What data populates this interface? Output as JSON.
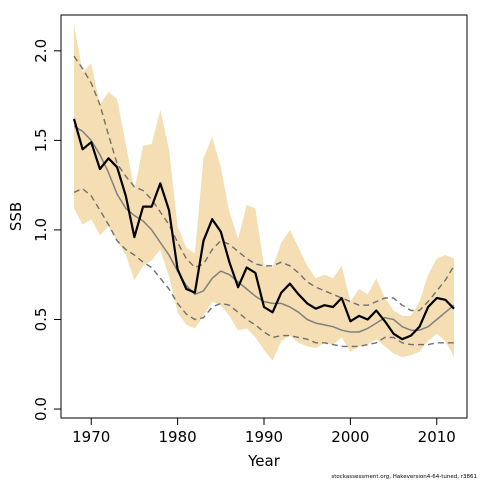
{
  "chart_data": {
    "type": "line",
    "xlabel": "Year",
    "ylabel": "SSB",
    "xlim": [
      1966.5,
      2013.5
    ],
    "ylim": [
      -0.05,
      2.2
    ],
    "xticks": [
      1970,
      1980,
      1990,
      2000,
      2010
    ],
    "xtick_labels": [
      "1970",
      "1980",
      "1990",
      "2000",
      "2010"
    ],
    "yticks": [
      0.0,
      0.5,
      1.0,
      1.5,
      2.0
    ],
    "ytick_labels": [
      "0.0",
      "0.5",
      "1.0",
      "1.5",
      "2.0"
    ],
    "grid": false,
    "footnote": "stockassessment.org, Hakeversion4-64-tuned, r3861",
    "colors": {
      "band": "#f5deb3",
      "estimate": "#000000",
      "smooth": "#808080",
      "smooth_bounds": "#707070"
    },
    "x": [
      1968,
      1969,
      1970,
      1971,
      1972,
      1973,
      1974,
      1975,
      1976,
      1977,
      1978,
      1979,
      1980,
      1981,
      1982,
      1983,
      1984,
      1985,
      1986,
      1987,
      1988,
      1989,
      1990,
      1991,
      1992,
      1993,
      1994,
      1995,
      1996,
      1997,
      1998,
      1999,
      2000,
      2001,
      2002,
      2003,
      2004,
      2005,
      2006,
      2007,
      2008,
      2009,
      2010,
      2011,
      2012
    ],
    "band_upper": [
      2.15,
      1.88,
      1.93,
      1.7,
      1.77,
      1.73,
      1.48,
      1.22,
      1.47,
      1.48,
      1.67,
      1.45,
      1.02,
      0.9,
      0.87,
      1.4,
      1.52,
      1.35,
      1.1,
      0.95,
      1.14,
      1.12,
      0.8,
      0.79,
      0.93,
      1.0,
      0.9,
      0.8,
      0.73,
      0.75,
      0.73,
      0.8,
      0.6,
      0.67,
      0.64,
      0.73,
      0.62,
      0.55,
      0.52,
      0.52,
      0.6,
      0.75,
      0.84,
      0.86,
      0.84
    ],
    "band_lower": [
      1.12,
      1.03,
      1.06,
      0.97,
      1.02,
      0.94,
      0.86,
      0.72,
      0.8,
      0.83,
      0.89,
      0.74,
      0.54,
      0.47,
      0.45,
      0.52,
      0.6,
      0.58,
      0.52,
      0.44,
      0.45,
      0.4,
      0.33,
      0.27,
      0.38,
      0.41,
      0.37,
      0.35,
      0.34,
      0.37,
      0.36,
      0.4,
      0.32,
      0.35,
      0.36,
      0.39,
      0.35,
      0.31,
      0.29,
      0.3,
      0.32,
      0.38,
      0.42,
      0.38,
      0.29
    ],
    "series": [
      {
        "key": "estimate",
        "values": [
          1.62,
          1.45,
          1.49,
          1.34,
          1.4,
          1.35,
          1.19,
          0.96,
          1.13,
          1.13,
          1.26,
          1.11,
          0.78,
          0.67,
          0.65,
          0.94,
          1.06,
          0.99,
          0.82,
          0.68,
          0.79,
          0.76,
          0.57,
          0.54,
          0.65,
          0.7,
          0.64,
          0.59,
          0.56,
          0.58,
          0.57,
          0.62,
          0.49,
          0.52,
          0.5,
          0.55,
          0.49,
          0.42,
          0.39,
          0.41,
          0.46,
          0.57,
          0.62,
          0.61,
          0.56
        ]
      },
      {
        "key": "smooth",
        "values": [
          1.58,
          1.55,
          1.5,
          1.42,
          1.32,
          1.2,
          1.12,
          1.08,
          1.05,
          1.0,
          0.93,
          0.86,
          0.77,
          0.69,
          0.64,
          0.66,
          0.73,
          0.77,
          0.75,
          0.71,
          0.67,
          0.63,
          0.6,
          0.59,
          0.59,
          0.57,
          0.54,
          0.5,
          0.48,
          0.47,
          0.46,
          0.44,
          0.43,
          0.43,
          0.45,
          0.48,
          0.51,
          0.5,
          0.46,
          0.44,
          0.44,
          0.46,
          0.5,
          0.54,
          0.58
        ]
      },
      {
        "key": "smooth_upper",
        "values": [
          1.97,
          1.9,
          1.82,
          1.7,
          1.53,
          1.37,
          1.3,
          1.24,
          1.22,
          1.17,
          1.1,
          1.03,
          0.93,
          0.84,
          0.79,
          0.81,
          0.89,
          0.94,
          0.92,
          0.88,
          0.84,
          0.81,
          0.8,
          0.8,
          0.82,
          0.8,
          0.76,
          0.71,
          0.68,
          0.66,
          0.64,
          0.62,
          0.6,
          0.58,
          0.58,
          0.6,
          0.62,
          0.62,
          0.58,
          0.55,
          0.55,
          0.6,
          0.66,
          0.72,
          0.8
        ]
      },
      {
        "key": "smooth_lower",
        "values": [
          1.21,
          1.23,
          1.19,
          1.11,
          1.03,
          0.94,
          0.89,
          0.86,
          0.82,
          0.79,
          0.73,
          0.67,
          0.59,
          0.53,
          0.5,
          0.51,
          0.57,
          0.59,
          0.58,
          0.54,
          0.5,
          0.47,
          0.43,
          0.4,
          0.41,
          0.41,
          0.4,
          0.39,
          0.37,
          0.37,
          0.36,
          0.35,
          0.35,
          0.35,
          0.36,
          0.37,
          0.4,
          0.4,
          0.37,
          0.36,
          0.36,
          0.36,
          0.37,
          0.37,
          0.37
        ]
      }
    ]
  }
}
